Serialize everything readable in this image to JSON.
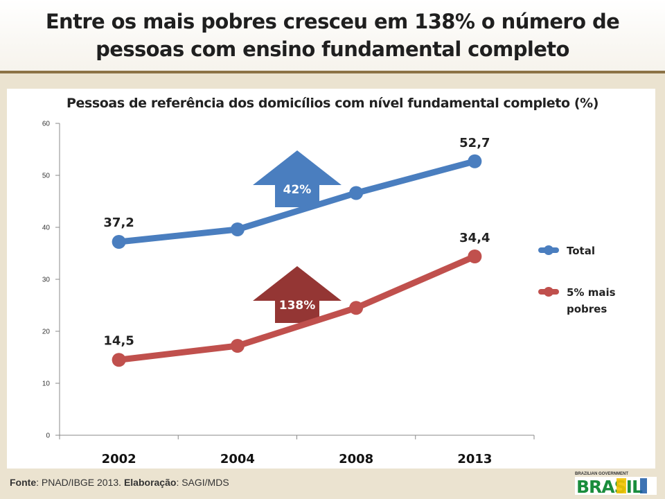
{
  "slide_title": "Entre os mais pobres cresceu em 138% o número de pessoas com ensino fundamental completo",
  "source": {
    "fonte_label": "Fonte",
    "fonte_value": ": PNAD/IBGE 2013. ",
    "elab_label": "Elaboração",
    "elab_value": ": SAGI/MDS"
  },
  "logo": {
    "top_text": "BRAZILIAN GOVERNMENT",
    "main_text": "BRASIL"
  },
  "chart_data": {
    "type": "line",
    "title": "Pessoas de referência dos domicílios com nível fundamental completo (%)",
    "categories": [
      "2002",
      "2004",
      "2008",
      "2013"
    ],
    "ylim": [
      0,
      60
    ],
    "yticks": [
      0,
      10,
      20,
      30,
      40,
      50,
      60
    ],
    "grid": false,
    "legend_position": "right",
    "series": [
      {
        "name": "Total",
        "values": [
          37.2,
          39.6,
          46.6,
          52.7
        ],
        "color": "#4a7ebf",
        "data_labels": {
          "first": "37,2",
          "last": "52,7"
        }
      },
      {
        "name": "5% mais pobres",
        "values": [
          14.5,
          17.2,
          24.5,
          34.4
        ],
        "color": "#c0504d",
        "data_labels": {
          "first": "14,5",
          "last": "34,4"
        }
      }
    ],
    "annotations": [
      {
        "text": "42%",
        "series": "Total",
        "color": "#4a7ebf",
        "shape": "up-arrow"
      },
      {
        "text": "138%",
        "series": "5% mais pobres",
        "color": "#943634",
        "shape": "up-arrow"
      }
    ]
  }
}
